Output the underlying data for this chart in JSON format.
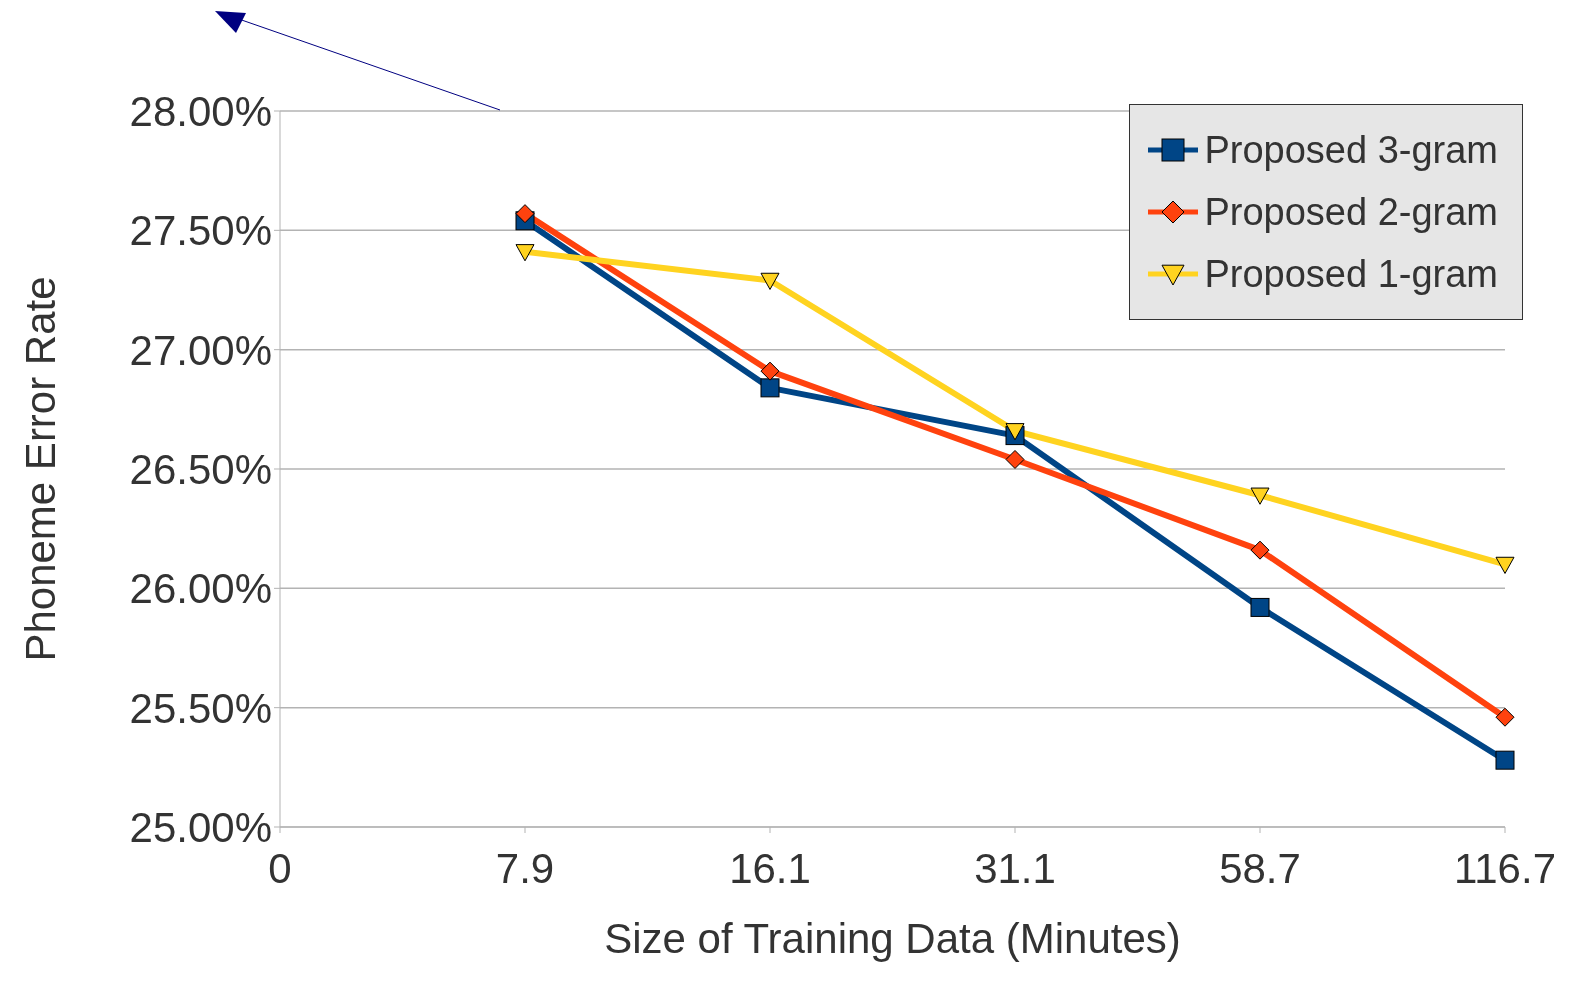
{
  "chart_data": {
    "type": "line",
    "xlabel": "Size of Training Data (Minutes)",
    "ylabel": "Phoneme Error Rate",
    "categories": [
      "0",
      "7.9",
      "16.1",
      "31.1",
      "58.7",
      "116.7"
    ],
    "series": [
      {
        "name": "Proposed 3-gram",
        "color": "#004586",
        "marker": "square",
        "values": [
          null,
          27.54,
          26.84,
          26.64,
          25.92,
          25.28
        ]
      },
      {
        "name": "Proposed 2-gram",
        "color": "#ff420e",
        "marker": "diamond",
        "values": [
          null,
          27.57,
          26.91,
          26.54,
          26.16,
          25.46
        ]
      },
      {
        "name": "Proposed 1-gram",
        "color": "#ffd320",
        "marker": "triangle",
        "values": [
          null,
          27.41,
          27.29,
          26.66,
          26.39,
          26.1
        ]
      }
    ],
    "ylim": [
      25,
      28
    ],
    "yticks": [
      {
        "value": 25,
        "label": "25.00%"
      },
      {
        "value": 25.5,
        "label": "25.50%"
      },
      {
        "value": 26,
        "label": "26.00%"
      },
      {
        "value": 26.5,
        "label": "26.50%"
      },
      {
        "value": 27,
        "label": "27.00%"
      },
      {
        "value": 27.5,
        "label": "27.50%"
      },
      {
        "value": 28,
        "label": "28.00%"
      }
    ],
    "grid": "y",
    "legend": "top right",
    "line_style": "solid"
  }
}
